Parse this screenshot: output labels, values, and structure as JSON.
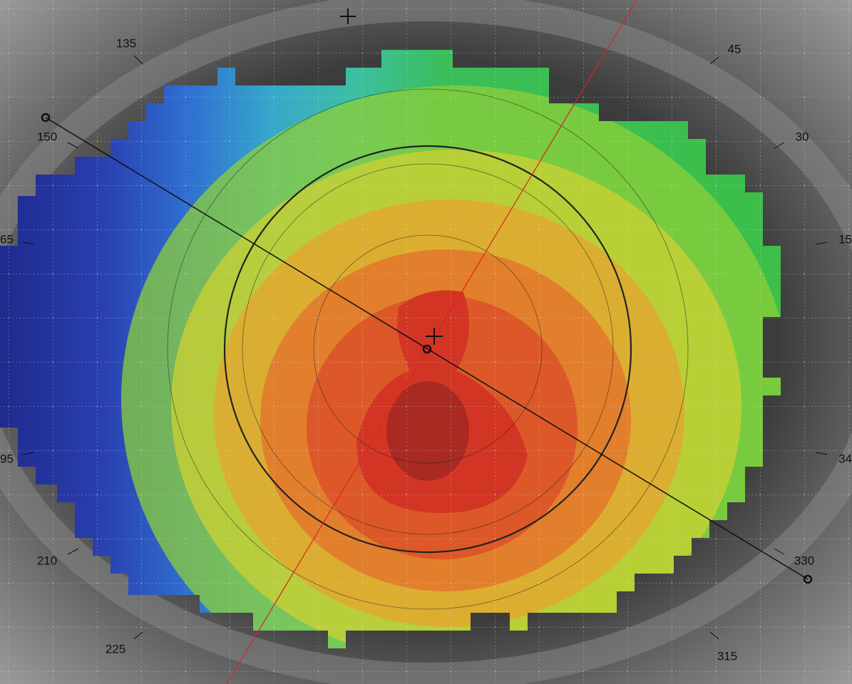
{
  "angle_labels": [
    "135",
    "45",
    "150",
    "30",
    "65",
    "15",
    "95",
    "34",
    "210",
    "330",
    "225",
    "315"
  ]
}
